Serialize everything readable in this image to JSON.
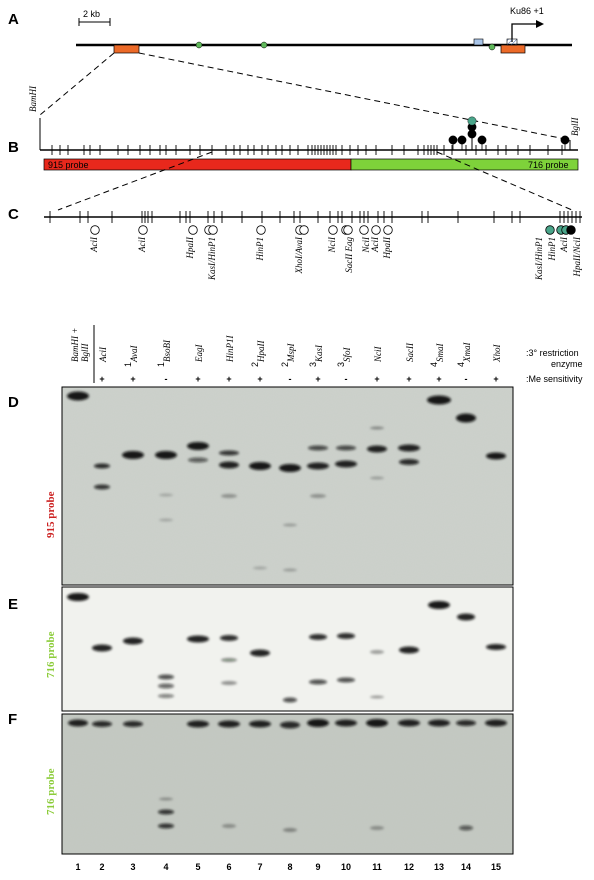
{
  "panels": {
    "a": "A",
    "b": "B",
    "c": "C",
    "d": "D",
    "e": "E",
    "f": "F"
  },
  "colors": {
    "red_probe": "#e8281c",
    "green_probe": "#7ed23a",
    "orange_exon": "#ec6a28",
    "green_dot": "#5fb85a",
    "teal_circle": "#4aa58a",
    "black": "#000000",
    "d_probe_text": "#cc2222",
    "ef_probe_text": "#8ccc3a",
    "gel_bg": "#cdd2cc",
    "gel_bg_e": "#f1f2ee",
    "gel_bg_f": "#c4c9c2"
  },
  "panel_a": {
    "scale_label": "2 kb",
    "gene_label": "Ku86 +1"
  },
  "panel_b": {
    "left_site": "BamHI",
    "right_site": "BglII",
    "probe_915": "915 probe",
    "probe_716": "716 probe"
  },
  "panel_c": {
    "labels": [
      "AciI",
      "AciI",
      "HpaII",
      "KasI/HinP1",
      "HinP1",
      "XhoI/AvaI",
      "NciI",
      "SacII Eag",
      "NciI",
      "AciI",
      "HpaII",
      "KasI/HinP1",
      "HinP1",
      "AciI",
      "HpaII/NciI"
    ]
  },
  "header": {
    "lane_enzymes": [
      "BamHI + BglII",
      "AciI",
      "AvaI",
      "BsoBI",
      "EagI",
      "HinP1I",
      "HpaII",
      "MspI",
      "KasI",
      "SfoI",
      "NciI",
      "SacII",
      "SmaI",
      "XmaI",
      "XhoI"
    ],
    "superscripts": [
      "",
      "",
      "1",
      "1",
      "",
      "",
      "2",
      "2",
      "3",
      "3",
      "",
      "",
      "4",
      "4",
      ""
    ],
    "sensitivity": [
      "",
      "+",
      "+",
      "-",
      "+",
      "+",
      "+",
      "-",
      "+",
      "-",
      "+",
      "+",
      "+",
      "-",
      "+"
    ],
    "row1_label": ":3° restriction",
    "row1b_label": "enzyme",
    "row2_label": ":Me sensitivity"
  },
  "gels": {
    "d_label": "915 probe",
    "e_label": "716 probe",
    "f_label": "716 probe"
  },
  "lane_numbers": [
    "1",
    "2",
    "3",
    "4",
    "5",
    "6",
    "7",
    "8",
    "9",
    "10",
    "11",
    "12",
    "13",
    "14",
    "15"
  ]
}
